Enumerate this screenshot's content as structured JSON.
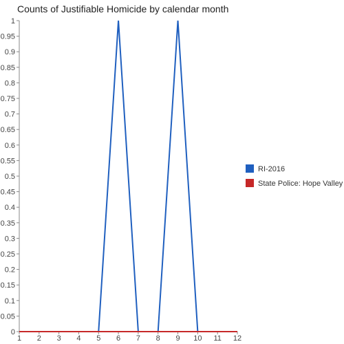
{
  "chart_data": {
    "type": "line",
    "title": "Counts of Justifiable Homicide by calendar month",
    "xlabel": "",
    "ylabel": "",
    "x": [
      1,
      2,
      3,
      4,
      5,
      6,
      7,
      8,
      9,
      10,
      11,
      12
    ],
    "x_ticks": [
      "1",
      "2",
      "3",
      "4",
      "5",
      "6",
      "7",
      "8",
      "9",
      "10",
      "11",
      "12"
    ],
    "y_ticks": [
      "0",
      "0.05",
      "0.1",
      "0.15",
      "0.2",
      "0.25",
      "0.3",
      "0.35",
      "0.4",
      "0.45",
      "0.5",
      "0.55",
      "0.6",
      "0.65",
      "0.7",
      "0.75",
      "0.8",
      "0.85",
      "0.9",
      "0.95",
      "1"
    ],
    "ylim": [
      0,
      1
    ],
    "xlim": [
      1,
      12
    ],
    "grid": false,
    "legend_position": "right",
    "series": [
      {
        "name": "RI-2016",
        "color": "#1f5fbf",
        "values": [
          0,
          0,
          0,
          0,
          0,
          1,
          0,
          0,
          1,
          0,
          0,
          0
        ]
      },
      {
        "name": "State Police: Hope Valley",
        "color": "#c62828",
        "values": [
          0,
          0,
          0,
          0,
          0,
          0,
          0,
          0,
          0,
          0,
          0,
          0
        ]
      }
    ]
  }
}
